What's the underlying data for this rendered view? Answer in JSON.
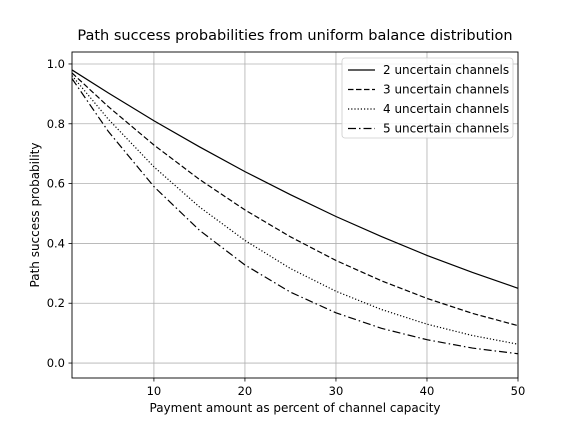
{
  "chart_data": {
    "type": "line",
    "title": "Path success probabilities from uniform balance distribution",
    "xlabel": "Payment amount as percent of channel capacity",
    "ylabel": "Path success probability",
    "xlim": [
      1,
      50
    ],
    "ylim": [
      -0.05,
      1.04
    ],
    "xticks": [
      10,
      20,
      30,
      40,
      50
    ],
    "yticks": [
      0.0,
      0.2,
      0.4,
      0.6,
      0.8,
      1.0
    ],
    "xtick_labels": [
      "10",
      "20",
      "30",
      "40",
      "50"
    ],
    "ytick_labels": [
      "0.0",
      "0.2",
      "0.4",
      "0.6",
      "0.8",
      "1.0"
    ],
    "grid": true,
    "legend_position": "top-right",
    "x": [
      1,
      5,
      10,
      15,
      20,
      25,
      30,
      35,
      40,
      45,
      50
    ],
    "series": [
      {
        "name": "2 uncertain channels",
        "style": "solid",
        "values": [
          0.98,
          0.903,
          0.81,
          0.723,
          0.64,
          0.563,
          0.49,
          0.423,
          0.36,
          0.303,
          0.25
        ]
      },
      {
        "name": "3 uncertain channels",
        "style": "dashed",
        "values": [
          0.97,
          0.857,
          0.729,
          0.614,
          0.512,
          0.422,
          0.343,
          0.275,
          0.216,
          0.166,
          0.125
        ]
      },
      {
        "name": "4 uncertain channels",
        "style": "dotted",
        "values": [
          0.961,
          0.815,
          0.656,
          0.522,
          0.41,
          0.316,
          0.24,
          0.179,
          0.13,
          0.092,
          0.063
        ]
      },
      {
        "name": "5 uncertain channels",
        "style": "dashdot",
        "values": [
          0.951,
          0.774,
          0.59,
          0.444,
          0.328,
          0.237,
          0.168,
          0.116,
          0.078,
          0.05,
          0.031
        ]
      }
    ]
  }
}
